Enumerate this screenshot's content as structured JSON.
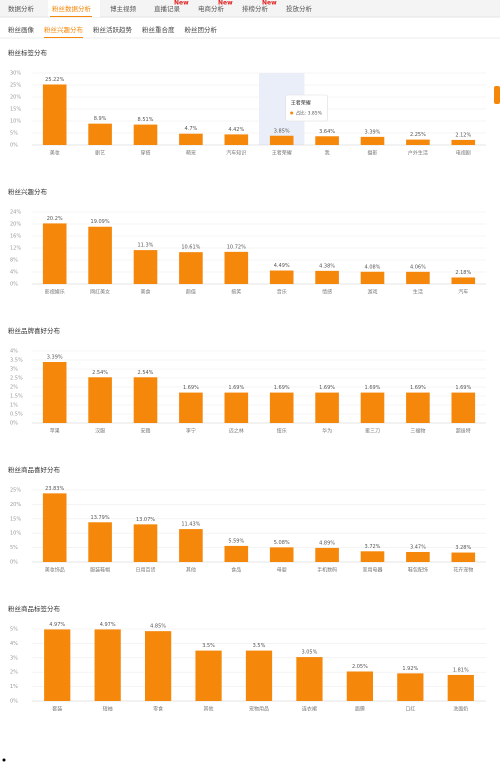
{
  "nav": {
    "active": 1,
    "tabs": [
      {
        "label": "数据分析"
      },
      {
        "label": "粉丝数据分析"
      },
      {
        "label": "博主视频"
      },
      {
        "label": "直播记录",
        "badge": "New"
      },
      {
        "label": "电商分析",
        "badge": "New"
      },
      {
        "label": "排榜分析",
        "badge": "New"
      },
      {
        "label": "投放分析"
      }
    ]
  },
  "subtabs": {
    "active": 1,
    "items": [
      "粉丝画像",
      "粉丝兴趣分布",
      "粉丝活跃趋势",
      "粉丝重合度",
      "粉丝团分析"
    ]
  },
  "chart_data": [
    {
      "type": "bar",
      "title": "粉丝标签分布",
      "color": "#f5870a",
      "categories": [
        "美妆",
        "剧艺",
        "穿搭",
        "萌宠",
        "汽车知识",
        "王者荣耀",
        "我",
        "摄影",
        "户外生活",
        "电视剧"
      ],
      "values": [
        25.22,
        8.9,
        8.51,
        4.7,
        4.42,
        3.85,
        3.64,
        3.39,
        2.25,
        2.12
      ],
      "value_labels": [
        "25.22%",
        "8.9%",
        "8.51%",
        "4.7%",
        "4.42%",
        "3.85%",
        "3.64%",
        "3.39%",
        "2.25%",
        "2.12%"
      ],
      "ylim": [
        0,
        30
      ],
      "yticks": [
        {
          "value": 0,
          "label": "0%"
        },
        {
          "value": 5,
          "label": "5%"
        },
        {
          "value": 10,
          "label": "10%"
        },
        {
          "value": 15,
          "label": "15%"
        },
        {
          "value": 20,
          "label": "20%"
        },
        {
          "value": 25,
          "label": "25%"
        },
        {
          "value": 30,
          "label": "30%"
        }
      ],
      "tooltip": {
        "index": 5,
        "title": "王者荣耀",
        "label": "占比: 3.85%"
      }
    },
    {
      "type": "bar",
      "title": "粉丝兴趣分布",
      "color": "#f5870a",
      "categories": [
        "影视娱乐",
        "网红美女",
        "美食",
        "颜值",
        "搞笑",
        "音乐",
        "情感",
        "游戏",
        "生活",
        "汽车"
      ],
      "values": [
        20.2,
        19.09,
        11.3,
        10.61,
        10.72,
        4.49,
        4.38,
        4.08,
        4.06,
        2.18
      ],
      "value_labels": [
        "20.2%",
        "19.09%",
        "11.3%",
        "10.61%",
        "10.72%",
        "4.49%",
        "4.38%",
        "4.08%",
        "4.06%",
        "2.18%"
      ],
      "ylim": [
        0,
        24
      ],
      "yticks": [
        {
          "value": 0,
          "label": "0%"
        },
        {
          "value": 4,
          "label": "4%"
        },
        {
          "value": 8,
          "label": "8%"
        },
        {
          "value": 12,
          "label": "12%"
        },
        {
          "value": 16,
          "label": "16%"
        },
        {
          "value": 20,
          "label": "20%"
        },
        {
          "value": 24,
          "label": "24%"
        }
      ]
    },
    {
      "type": "bar",
      "title": "粉丝品牌喜好分布",
      "color": "#f5870a",
      "categories": [
        "苹果",
        "汉服",
        "安踏",
        "李宁",
        "迈之林",
        "纽乐",
        "华为",
        "蜜三刀",
        "三福物",
        "超级特"
      ],
      "values": [
        3.39,
        2.54,
        2.54,
        1.69,
        1.69,
        1.69,
        1.69,
        1.69,
        1.69,
        1.69
      ],
      "value_labels": [
        "3.39%",
        "2.54%",
        "2.54%",
        "1.69%",
        "1.69%",
        "1.69%",
        "1.69%",
        "1.69%",
        "1.69%",
        "1.69%"
      ],
      "ylim": [
        0,
        4
      ],
      "yticks": [
        {
          "value": 0,
          "label": "0%"
        },
        {
          "value": 0.5,
          "label": "0.5%"
        },
        {
          "value": 1,
          "label": "1%"
        },
        {
          "value": 1.5,
          "label": "1.5%"
        },
        {
          "value": 2,
          "label": "2%"
        },
        {
          "value": 2.5,
          "label": "2.5%"
        },
        {
          "value": 3,
          "label": "3%"
        },
        {
          "value": 3.5,
          "label": "3.5%"
        },
        {
          "value": 4,
          "label": "4%"
        }
      ]
    },
    {
      "type": "bar",
      "title": "粉丝商品喜好分布",
      "color": "#f5870a",
      "categories": [
        "美妆饰品",
        "服装鞋帽",
        "日用百货",
        "其他",
        "食品",
        "母婴",
        "手机数码",
        "家用电器",
        "鞋包配饰",
        "花卉宠物"
      ],
      "values": [
        23.83,
        13.79,
        13.07,
        11.43,
        5.59,
        5.08,
        4.89,
        3.72,
        3.47,
        3.28
      ],
      "value_labels": [
        "23.83%",
        "13.79%",
        "13.07%",
        "11.43%",
        "5.59%",
        "5.08%",
        "4.89%",
        "3.72%",
        "3.47%",
        "3.28%"
      ],
      "ylim": [
        0,
        25
      ],
      "yticks": [
        {
          "value": 0,
          "label": "0%"
        },
        {
          "value": 5,
          "label": "5%"
        },
        {
          "value": 10,
          "label": "10%"
        },
        {
          "value": 15,
          "label": "15%"
        },
        {
          "value": 20,
          "label": "20%"
        },
        {
          "value": 25,
          "label": "25%"
        }
      ]
    },
    {
      "type": "bar",
      "title": "粉丝商品标签分布",
      "color": "#f5870a",
      "categories": [
        "套装",
        "短袖",
        "零食",
        "其他",
        "宠物用品",
        "连衣裙",
        "面膜",
        "口红",
        "洗面奶"
      ],
      "values": [
        4.97,
        4.97,
        4.85,
        3.5,
        3.5,
        3.05,
        2.05,
        1.92,
        1.81
      ],
      "value_labels": [
        "4.97%",
        "4.97%",
        "4.85%",
        "3.5%",
        "3.5%",
        "3.05%",
        "2.05%",
        "1.92%",
        "1.81%"
      ],
      "ylim": [
        0,
        5
      ],
      "yticks": [
        {
          "value": 0,
          "label": "0%"
        },
        {
          "value": 1,
          "label": "1%"
        },
        {
          "value": 2,
          "label": "2%"
        },
        {
          "value": 3,
          "label": "3%"
        },
        {
          "value": 4,
          "label": "4%"
        },
        {
          "value": 5,
          "label": "5%"
        }
      ]
    }
  ]
}
